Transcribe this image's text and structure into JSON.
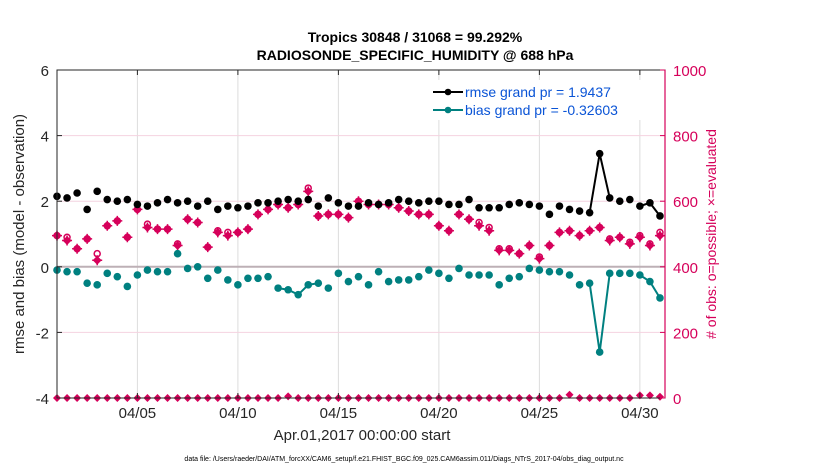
{
  "chart_data": {
    "type": "line",
    "title": "Tropics 30848 / 31068 = 99.292%",
    "subtitle": "RADIOSONDE_SPECIFIC_HUMIDITY @ 688 hPa",
    "xlabel": "Apr.01,2017 00:00:00 start",
    "ylabel": "rmse and bias (model - observation)",
    "ylabel_right": "# of obs: o=possible; ×=evaluated",
    "ylim": [
      -4,
      6
    ],
    "ylim_right": [
      0,
      1000
    ],
    "yticks": [
      "6",
      "4",
      "2",
      "0",
      "-2",
      "-4"
    ],
    "yticks_right": [
      "1000",
      "800",
      "600",
      "400",
      "200",
      "0"
    ],
    "xtick_labels": [
      "04/05",
      "04/10",
      "04/15",
      "04/20",
      "04/25",
      "04/30"
    ],
    "xtick_days": [
      5,
      10,
      15,
      20,
      25,
      30
    ],
    "x_days_range": [
      1.0,
      31.25
    ],
    "grid": true,
    "legend_position": "top-right",
    "legend": [
      {
        "label": "rmse grand pr = 1.9437",
        "color": "#000000"
      },
      {
        "label": "bias grand pr = -0.32603",
        "color": "#008080"
      }
    ],
    "footnote": "data file: /Users/raeder/DAI/ATM_forcXX/CAM6_setup/f.e21.FHIST_BGC.f09_025.CAM6assim.011/Diags_NTrS_2017-04/obs_diag_output.nc",
    "x_start_day": 1.0,
    "x_step_days": 0.5,
    "series": [
      {
        "name": "rmse",
        "color": "#000000",
        "axis": "left",
        "values": [
          2.15,
          2.1,
          2.25,
          1.75,
          2.3,
          2.05,
          2.0,
          2.05,
          1.9,
          1.85,
          1.95,
          2.05,
          1.95,
          2.0,
          1.85,
          2.0,
          1.75,
          1.85,
          1.8,
          1.85,
          1.95,
          1.95,
          2.0,
          2.05,
          2.0,
          2.05,
          1.85,
          2.1,
          1.95,
          1.85,
          1.85,
          1.95,
          1.9,
          1.95,
          2.05,
          2.0,
          1.95,
          2.0,
          2.0,
          1.9,
          1.9,
          2.05,
          1.8,
          1.8,
          1.8,
          1.9,
          1.95,
          1.9,
          1.85,
          1.6,
          1.85,
          1.75,
          1.7,
          1.65,
          3.45,
          2.1,
          2.0,
          2.05,
          1.85,
          1.95,
          1.55
        ]
      },
      {
        "name": "bias",
        "color": "#008080",
        "axis": "left",
        "values": [
          -0.1,
          -0.15,
          -0.15,
          -0.5,
          -0.55,
          -0.2,
          -0.3,
          -0.6,
          -0.25,
          -0.1,
          -0.15,
          -0.15,
          0.4,
          -0.05,
          0.0,
          -0.35,
          -0.1,
          -0.4,
          -0.55,
          -0.35,
          -0.35,
          -0.3,
          -0.65,
          -0.7,
          -0.85,
          -0.55,
          -0.5,
          -0.65,
          -0.2,
          -0.45,
          -0.3,
          -0.55,
          -0.15,
          -0.45,
          -0.4,
          -0.4,
          -0.3,
          -0.1,
          -0.2,
          -0.35,
          -0.05,
          -0.25,
          -0.25,
          -0.25,
          -0.55,
          -0.35,
          -0.3,
          -0.05,
          -0.1,
          -0.15,
          -0.15,
          -0.25,
          -0.55,
          -0.5,
          -2.6,
          -0.2,
          -0.2,
          -0.2,
          -0.25,
          -0.45,
          -0.95
        ]
      },
      {
        "name": "obs_possible",
        "color": "#d6005a",
        "axis": "right",
        "values": [
          495,
          490,
          455,
          485,
          440,
          525,
          540,
          490,
          575,
          530,
          515,
          515,
          470,
          545,
          535,
          460,
          510,
          505,
          505,
          515,
          560,
          575,
          590,
          580,
          590,
          640,
          555,
          560,
          560,
          550,
          600,
          590,
          590,
          590,
          580,
          570,
          560,
          560,
          525,
          510,
          560,
          545,
          535,
          520,
          455,
          455,
          440,
          465,
          430,
          465,
          505,
          510,
          495,
          510,
          520,
          485,
          490,
          475,
          495,
          470,
          505
        ]
      },
      {
        "name": "obs_evaluated",
        "color": "#d6005a",
        "axis": "right",
        "values": [
          495,
          480,
          455,
          485,
          420,
          525,
          540,
          490,
          575,
          520,
          515,
          515,
          465,
          545,
          535,
          460,
          505,
          495,
          505,
          515,
          560,
          575,
          590,
          580,
          590,
          630,
          555,
          560,
          560,
          550,
          600,
          590,
          590,
          590,
          580,
          570,
          560,
          560,
          525,
          510,
          560,
          545,
          525,
          510,
          450,
          450,
          440,
          465,
          425,
          465,
          505,
          510,
          495,
          510,
          520,
          480,
          490,
          470,
          490,
          465,
          495
        ]
      },
      {
        "name": "obs_rejected_baseline",
        "color": "#d6005a",
        "axis": "left",
        "values": [
          -4,
          -4,
          -4,
          -4,
          -4,
          -4,
          -4,
          -4,
          -4,
          -4,
          -4,
          -4,
          -4,
          -4,
          -4,
          -4,
          -4,
          -4,
          -4,
          -4,
          -4,
          -4,
          -4,
          -3.95,
          -4,
          -4,
          -4,
          -4,
          -4,
          -4,
          -4,
          -4,
          -4,
          -4,
          -4,
          -4,
          -4,
          -4,
          -4,
          -4,
          -4,
          -4,
          -4,
          -4,
          -4,
          -4,
          -4,
          -4,
          -4,
          -4,
          -4,
          -3.9,
          -4,
          -4,
          -4,
          -4,
          -4,
          -4,
          -3.92,
          -3.92,
          -3.96
        ]
      }
    ]
  }
}
